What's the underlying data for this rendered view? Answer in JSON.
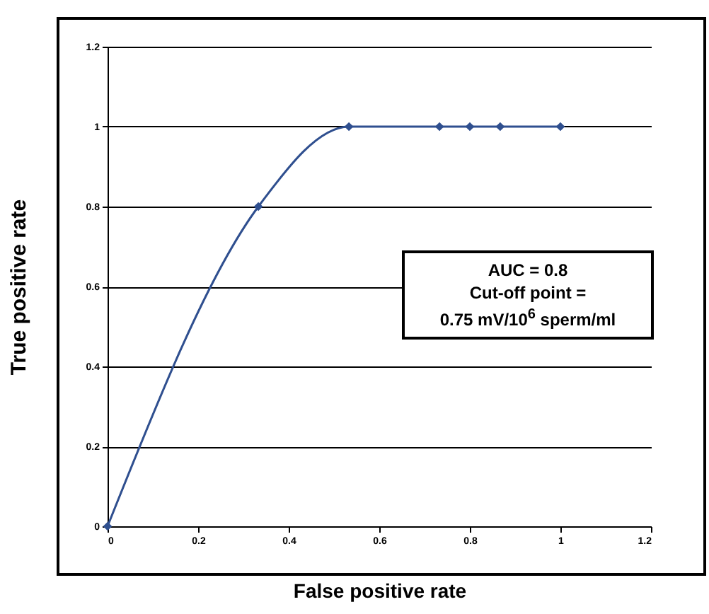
{
  "chart_data": {
    "type": "line",
    "xlabel": "False positive rate",
    "ylabel": "True positive rate",
    "x": [
      0,
      0.333,
      0.533,
      0.733,
      0.8,
      0.867,
      1
    ],
    "series": [
      {
        "color": "#2f4f8f",
        "values": [
          0,
          0.8,
          1,
          1,
          1,
          1,
          1
        ]
      }
    ],
    "xlim": [
      0,
      1.2
    ],
    "xticks": [
      0,
      0.2,
      0.4,
      0.6,
      0.8,
      1,
      1.2
    ],
    "ylim": [
      0,
      1.2
    ],
    "yticks": [
      0,
      0.2,
      0.4,
      0.6,
      0.8,
      1,
      1.2
    ],
    "grid": "y",
    "marker": "diamond",
    "line_style": "solid",
    "annotations": [
      "AUC = 0.8",
      "Cut-off point =",
      "0.75 mV/10$^{6}$ sperm/ml"
    ]
  }
}
